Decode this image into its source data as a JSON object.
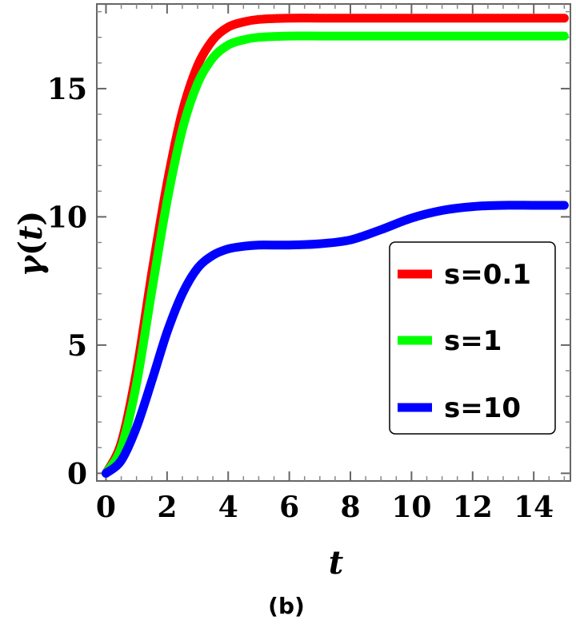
{
  "chart_data": {
    "type": "line",
    "xlabel": "t",
    "ylabel_symbol": "γ",
    "ylabel_arg": "t",
    "xlim": [
      -0.3,
      15.2
    ],
    "ylim": [
      -0.3,
      18.3
    ],
    "xticks": [
      0,
      2,
      4,
      6,
      8,
      10,
      12,
      14
    ],
    "yticks": [
      0,
      5,
      10,
      15
    ],
    "grid": false,
    "legend_position": "right-middle",
    "caption": "(b)",
    "series": [
      {
        "name": "s=0.1",
        "color": "#ff0000",
        "x": [
          0,
          0.5,
          1,
          1.5,
          2,
          2.5,
          3,
          3.5,
          4,
          4.5,
          5,
          6,
          7,
          8,
          9,
          10,
          11,
          12,
          13,
          14,
          15
        ],
        "y": [
          0,
          1.2,
          4.0,
          7.8,
          11.3,
          14.1,
          15.9,
          16.9,
          17.4,
          17.6,
          17.7,
          17.75,
          17.75,
          17.75,
          17.75,
          17.75,
          17.75,
          17.75,
          17.75,
          17.75,
          17.75
        ]
      },
      {
        "name": "s=1",
        "color": "#00ff00",
        "x": [
          0,
          0.5,
          1,
          1.5,
          2,
          2.5,
          3,
          3.5,
          4,
          4.5,
          5,
          6,
          7,
          8,
          9,
          10,
          11,
          12,
          13,
          14,
          15
        ],
        "y": [
          0,
          1.0,
          3.5,
          7.1,
          10.6,
          13.4,
          15.2,
          16.2,
          16.7,
          16.9,
          17.0,
          17.05,
          17.05,
          17.05,
          17.05,
          17.05,
          17.05,
          17.05,
          17.05,
          17.05,
          17.05
        ]
      },
      {
        "name": "s=10",
        "color": "#0000ff",
        "x": [
          0,
          0.5,
          1,
          1.5,
          2,
          2.5,
          3,
          3.5,
          4,
          4.5,
          5,
          6,
          7,
          8,
          9,
          10,
          11,
          12,
          13,
          14,
          15
        ],
        "y": [
          0,
          0.5,
          1.8,
          3.6,
          5.5,
          7.0,
          8.0,
          8.5,
          8.75,
          8.85,
          8.9,
          8.9,
          8.95,
          9.1,
          9.5,
          9.95,
          10.25,
          10.4,
          10.45,
          10.45,
          10.45
        ]
      }
    ]
  }
}
